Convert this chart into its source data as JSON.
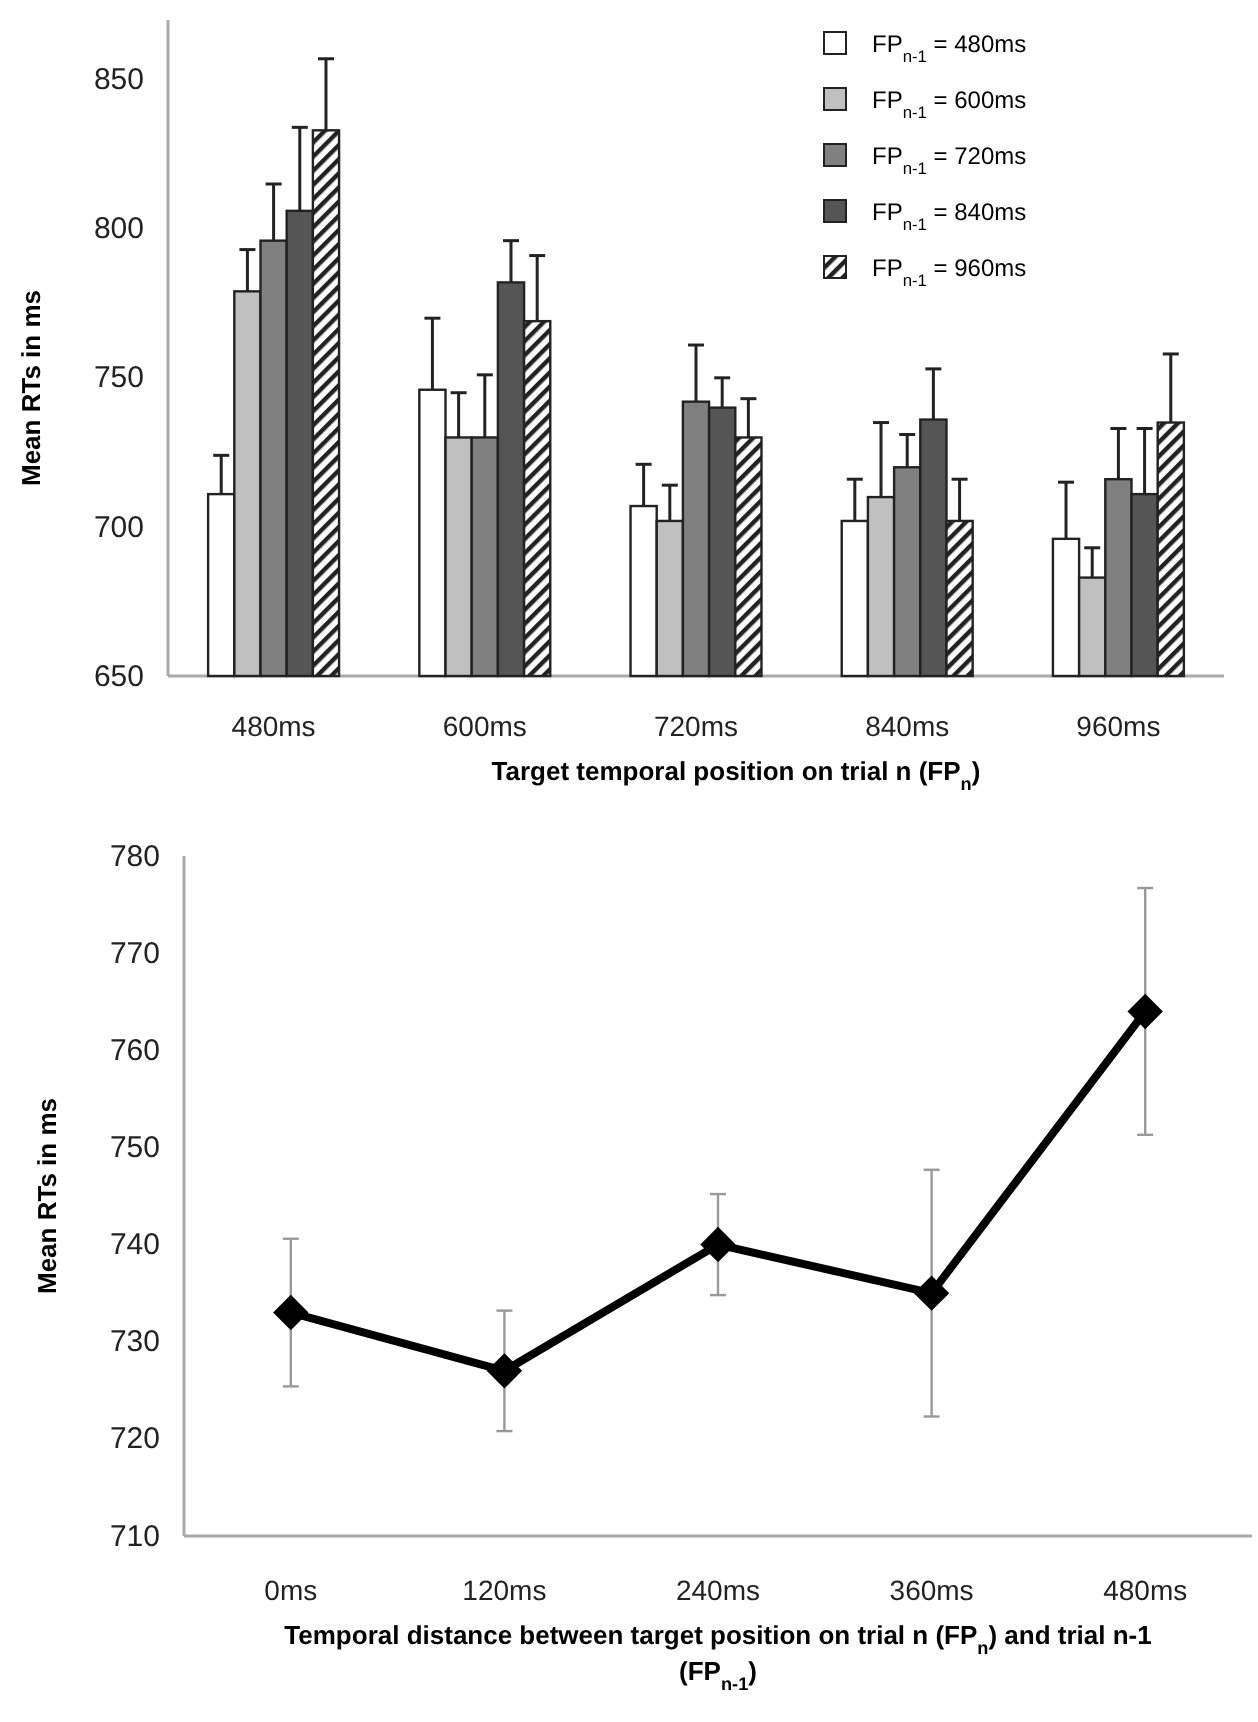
{
  "chart_data": [
    {
      "type": "bar",
      "xlabel": "Target temporal position on trial n (FP$_{n}$)",
      "ylabel": "Mean RTs in ms",
      "categories": [
        "480ms",
        "600ms",
        "720ms",
        "840ms",
        "960ms"
      ],
      "ylim": [
        650,
        870
      ],
      "yticks": [
        650,
        700,
        750,
        800,
        850
      ],
      "legend": "top right",
      "grid": false,
      "series": [
        {
          "name": "FP$_{n-1}$ = 480ms",
          "color": "#ffffff",
          "values": [
            711,
            746,
            707,
            702,
            696
          ],
          "errors": [
            [
              711,
              724
            ],
            [
              746,
              770
            ],
            [
              707,
              721
            ],
            [
              702,
              716
            ],
            [
              696,
              715
            ]
          ]
        },
        {
          "name": "FP$_{n-1}$ = 600ms",
          "color": "#c0c0c0",
          "values": [
            779,
            730,
            702,
            710,
            683
          ],
          "errors": [
            [
              779,
              793
            ],
            [
              730,
              745
            ],
            [
              702,
              714
            ],
            [
              710,
              735
            ],
            [
              683,
              693
            ]
          ]
        },
        {
          "name": "FP$_{n-1}$ = 720ms",
          "color": "#808080",
          "values": [
            796,
            730,
            742,
            720,
            716
          ],
          "errors": [
            [
              796,
              815
            ],
            [
              730,
              751
            ],
            [
              742,
              761
            ],
            [
              720,
              731
            ],
            [
              716,
              733
            ]
          ]
        },
        {
          "name": "FP$_{n-1}$ = 840ms",
          "color": "#555555",
          "values": [
            806,
            782,
            740,
            736,
            711
          ],
          "errors": [
            [
              806,
              834
            ],
            [
              782,
              796
            ],
            [
              740,
              750
            ],
            [
              736,
              753
            ],
            [
              711,
              733
            ]
          ]
        },
        {
          "name": "FP$_{n-1}$ = 960ms",
          "color": "#222222",
          "values": [
            833,
            769,
            730,
            702,
            735
          ],
          "errors": [
            [
              833,
              857
            ],
            [
              769,
              791
            ],
            [
              730,
              743
            ],
            [
              702,
              716
            ],
            [
              735,
              758
            ]
          ]
        }
      ]
    },
    {
      "type": "line",
      "xlabel": "Temporal distance between target position on trial n (FP$_{n}$) and trial n-1 (FP$_{n-1}$)",
      "ylabel": "Mean RTs in ms",
      "categories": [
        "0ms",
        "120ms",
        "240ms",
        "360ms",
        "480ms"
      ],
      "ylim": [
        710,
        780
      ],
      "yticks": [
        710,
        720,
        730,
        740,
        750,
        760,
        770,
        780
      ],
      "legend": false,
      "grid": false,
      "marker": "diamond",
      "line_style": "solid",
      "series": [
        {
          "color": "#000000",
          "values": [
            733,
            727,
            740,
            735,
            764
          ],
          "errors": [
            7.6,
            6.2,
            5.2,
            12.7,
            12.7
          ]
        }
      ]
    }
  ]
}
